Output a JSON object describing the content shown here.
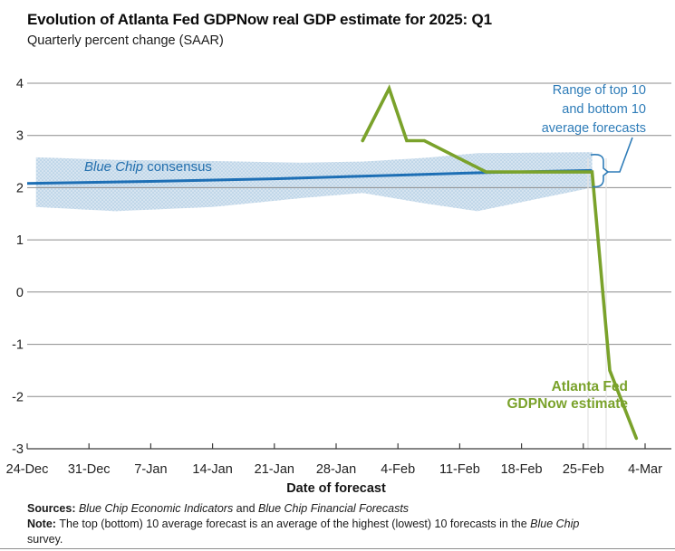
{
  "page": {
    "title": "Evolution of Atlanta Fed GDPNow real GDP estimate for 2025: Q1",
    "subtitle": "Quarterly percent change (SAAR)"
  },
  "labels": {
    "consensus_italic": "Blue Chip",
    "consensus_rest": " consensus",
    "range_annotation": "Range of top 10\nand bottom 10\naverage forecasts",
    "gdpnow_annotation": "Atlanta Fed\nGDPNow estimate",
    "x_axis_title": "Date of forecast"
  },
  "footer": {
    "sources_rich": [
      {
        "t": "Sources: ",
        "b": true
      },
      {
        "t": "Blue Chip Economic Indicators",
        "i": true
      },
      {
        "t": " and "
      },
      {
        "t": "Blue Chip Financial Forecasts",
        "i": true
      }
    ],
    "note_rich": [
      {
        "t": "Note: ",
        "b": true
      },
      {
        "t": "The top (bottom) 10 average forecast is an average of the highest (lowest) 10 forecasts in the "
      },
      {
        "t": "Blue Chip",
        "i": true
      },
      {
        "t": " survey."
      }
    ]
  },
  "colors": {
    "gdpnow_green": "#7aa22b",
    "consensus_blue": "#1d6fb5",
    "band_base": "#d6e4f0",
    "band_dot": "#a3c5e0",
    "annotation_blue": "#2e7cb8",
    "gridline": "#8c8c8c",
    "axis": "#3c3c3c",
    "tick_label": "#222222",
    "faint_vertical": "#e2e2e2"
  },
  "chart_data": {
    "type": "line",
    "title": "Evolution of Atlanta Fed GDPNow real GDP estimate for 2025: Q1",
    "subtitle": "Quarterly percent change (SAAR)",
    "xlabel": "Date of forecast",
    "ylabel": "Quarterly percent change (SAAR)",
    "ylim": [
      -3,
      4
    ],
    "yticks": [
      4,
      3,
      2,
      1,
      0,
      -1,
      -2,
      -3
    ],
    "grid": "horizontal",
    "legend_position": "annotations-on-chart",
    "xticks": [
      {
        "label": "24-Dec",
        "day": 0
      },
      {
        "label": "31-Dec",
        "day": 7
      },
      {
        "label": "7-Jan",
        "day": 14
      },
      {
        "label": "14-Jan",
        "day": 21
      },
      {
        "label": "21-Jan",
        "day": 28
      },
      {
        "label": "28-Jan",
        "day": 35
      },
      {
        "label": "4-Feb",
        "day": 42
      },
      {
        "label": "11-Feb",
        "day": 49
      },
      {
        "label": "18-Feb",
        "day": 56
      },
      {
        "label": "25-Feb",
        "day": 63
      },
      {
        "label": "4-Mar",
        "day": 70
      }
    ],
    "series": [
      {
        "name": "Atlanta Fed GDPNow estimate",
        "color": "#7aa22b",
        "points": [
          {
            "date": "31-Jan",
            "day": 38,
            "value": 2.9
          },
          {
            "date": "3-Feb",
            "day": 41,
            "value": 3.9
          },
          {
            "date": "5-Feb",
            "day": 43,
            "value": 2.9
          },
          {
            "date": "7-Feb",
            "day": 45,
            "value": 2.9
          },
          {
            "date": "14-Feb",
            "day": 52,
            "value": 2.3
          },
          {
            "date": "19-Feb",
            "day": 57,
            "value": 2.3
          },
          {
            "date": "26-Feb",
            "day": 64,
            "value": 2.3
          },
          {
            "date": "28-Feb",
            "day": 66,
            "value": -1.5
          },
          {
            "date": "3-Mar",
            "day": 69,
            "value": -2.8
          }
        ]
      },
      {
        "name": "Blue Chip consensus",
        "color": "#1d6fb5",
        "points": [
          {
            "date": "24-Dec",
            "day": 0,
            "value": 2.08
          },
          {
            "date": "7-Jan",
            "day": 14,
            "value": 2.12
          },
          {
            "date": "21-Jan",
            "day": 28,
            "value": 2.17
          },
          {
            "date": "4-Feb",
            "day": 42,
            "value": 2.24
          },
          {
            "date": "14-Feb",
            "day": 52,
            "value": 2.29
          },
          {
            "date": "26-Feb",
            "day": 64,
            "value": 2.33
          }
        ]
      }
    ],
    "band": {
      "name": "Range of top 10 and bottom 10 average forecasts",
      "points": [
        {
          "day": 1,
          "top": 2.58,
          "bottom": 1.63
        },
        {
          "day": 10,
          "top": 2.53,
          "bottom": 1.55
        },
        {
          "day": 21,
          "top": 2.51,
          "bottom": 1.63
        },
        {
          "day": 31,
          "top": 2.48,
          "bottom": 1.8
        },
        {
          "day": 38,
          "top": 2.5,
          "bottom": 1.9
        },
        {
          "day": 45,
          "top": 2.57,
          "bottom": 1.7
        },
        {
          "day": 51,
          "top": 2.66,
          "bottom": 1.55
        },
        {
          "day": 64,
          "top": 2.68,
          "bottom": 2.0
        }
      ]
    }
  }
}
